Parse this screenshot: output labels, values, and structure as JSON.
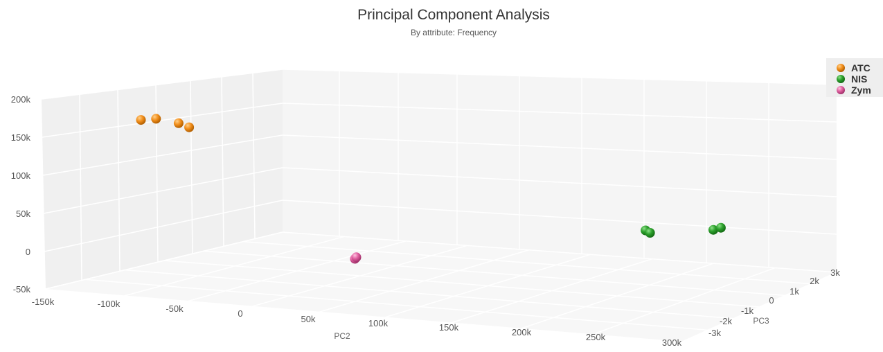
{
  "chart_data": {
    "type": "scatter3d",
    "title": "Principal Component Analysis",
    "subtitle": "By attribute: Frequency",
    "z_axis": {
      "ticks": [
        "-50k",
        "0",
        "50k",
        "100k",
        "150k",
        "200k"
      ]
    },
    "x_axis": {
      "label": "PC2",
      "ticks": [
        "-150k",
        "-100k",
        "-50k",
        "0",
        "50k",
        "100k",
        "150k",
        "200k",
        "250k",
        "300k"
      ]
    },
    "y_axis": {
      "label": "PC3",
      "ticks": [
        "-3k",
        "-2k",
        "-1k",
        "0",
        "1k",
        "2k",
        "3k"
      ]
    },
    "legend": {
      "position": "top-right"
    },
    "series": [
      {
        "name": "ATC",
        "color": "#f28f1c",
        "points": [
          {
            "x": -80000,
            "z": 178000
          },
          {
            "x": -70000,
            "z": 180000
          },
          {
            "x": -55000,
            "z": 175000
          },
          {
            "x": -48000,
            "z": 170000
          }
        ]
      },
      {
        "name": "NIS",
        "color": "#2ca02c",
        "points": [
          {
            "x": 255000,
            "z": 50000
          },
          {
            "x": 258000,
            "z": 47000
          },
          {
            "x": 300000,
            "z": 53000
          },
          {
            "x": 305000,
            "z": 56000
          }
        ]
      },
      {
        "name": "Zym",
        "color": "#e060a0",
        "points": [
          {
            "x": 62000,
            "z": 3000
          },
          {
            "x": 63000,
            "z": 5000
          }
        ]
      }
    ]
  }
}
